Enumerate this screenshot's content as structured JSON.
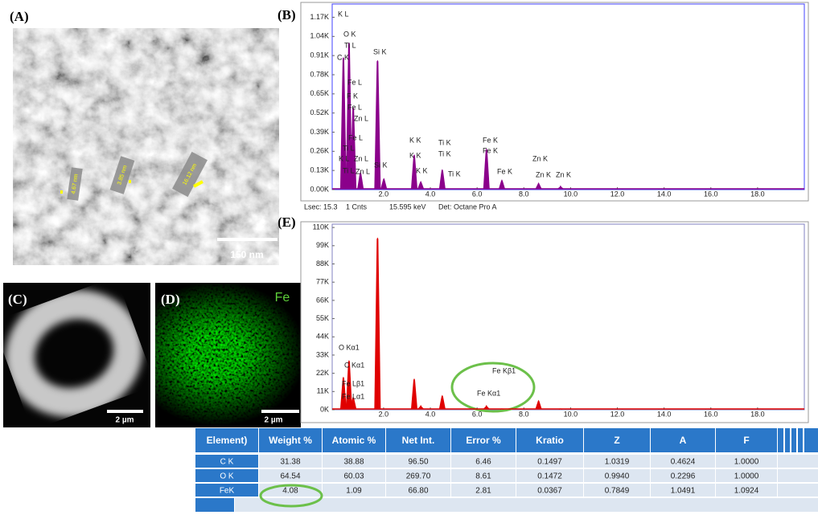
{
  "panel_labels": {
    "a": "(A)",
    "b": "(B)",
    "c": "(C)",
    "d": "(D)",
    "e": "(E)"
  },
  "sem_image": {
    "measurements": [
      "4.67 nm",
      "3.85 nm",
      "16.12 nm"
    ],
    "scale_bar": "150 nm"
  },
  "map_c": {
    "scale_bar": "2 µm"
  },
  "map_d": {
    "element": "Fe",
    "scale_bar": "2 µm"
  },
  "chart_data": [
    {
      "type": "spectrum",
      "color": "#8b008b",
      "x": [
        0.28,
        0.52,
        0.7,
        1.01,
        1.74,
        2.01,
        3.31,
        3.59,
        4.51,
        6.4,
        7.06,
        8.63,
        9.57
      ],
      "values": [
        0.9,
        1.0,
        0.56,
        0.12,
        0.88,
        0.08,
        0.24,
        0.06,
        0.14,
        0.28,
        0.07,
        0.05,
        0.03
      ],
      "xlim": [
        -0.2,
        20
      ],
      "ylim": [
        0,
        1.26
      ],
      "xticks": [
        {
          "value": 2,
          "label": "2.0"
        },
        {
          "value": 4,
          "label": "4.0"
        },
        {
          "value": 6,
          "label": "6.0"
        },
        {
          "value": 8,
          "label": "8.0"
        },
        {
          "value": 10,
          "label": "10.0"
        },
        {
          "value": 12,
          "label": "12.0"
        },
        {
          "value": 14,
          "label": "14.0"
        },
        {
          "value": 16,
          "label": "16.0"
        },
        {
          "value": 18,
          "label": "18.0"
        }
      ],
      "yticks": [
        {
          "value": 0,
          "label": "0.00K"
        },
        {
          "value": 0.13,
          "label": "0.13K"
        },
        {
          "value": 0.26,
          "label": "0.26K"
        },
        {
          "value": 0.39,
          "label": "0.39K"
        },
        {
          "value": 0.52,
          "label": "0.52K"
        },
        {
          "value": 0.65,
          "label": "0.65K"
        },
        {
          "value": 0.78,
          "label": "0.78K"
        },
        {
          "value": 0.91,
          "label": "0.91K"
        },
        {
          "value": 1.04,
          "label": "1.04K"
        },
        {
          "value": 1.17,
          "label": "1.17K"
        }
      ],
      "peak_labels": [
        "K L",
        "O K",
        "Ti L",
        "C K",
        "Si K",
        "Fe L",
        "F  K",
        "Fe L",
        "Zn L",
        "Fe L",
        "Ti L",
        "K L",
        "Zn L",
        "Ti L",
        "Zn L",
        "Si K",
        "K  K",
        "K  K",
        "K  K",
        "Ti K",
        "Ti K",
        "Ti K",
        "Fe K",
        "Fe K",
        "Fe K",
        "Zn K",
        "Zn K",
        "Zn K"
      ],
      "footer": [
        "Lsec: 15.3",
        "1 Cnts",
        "15.595 keV",
        "Det: Octane Pro A"
      ]
    },
    {
      "type": "spectrum",
      "color": "#e00000",
      "x": [
        0.28,
        0.52,
        0.7,
        1.74,
        3.31,
        3.59,
        4.51,
        6.4,
        7.06,
        8.63,
        9.57
      ],
      "values": [
        20,
        30,
        8,
        104,
        19,
        3,
        9,
        3,
        1,
        6,
        1
      ],
      "xlim": [
        -0.2,
        20
      ],
      "ylim": [
        0,
        112
      ],
      "xticks": [
        {
          "value": 2,
          "label": "2.0"
        },
        {
          "value": 4,
          "label": "4.0"
        },
        {
          "value": 6,
          "label": "6.0"
        },
        {
          "value": 8,
          "label": "8.0"
        },
        {
          "value": 10,
          "label": "10.0"
        },
        {
          "value": 12,
          "label": "12.0"
        },
        {
          "value": 14,
          "label": "14.0"
        },
        {
          "value": 16,
          "label": "16.0"
        },
        {
          "value": 18,
          "label": "18.0"
        }
      ],
      "yticks": [
        {
          "value": 0,
          "label": "0K"
        },
        {
          "value": 11,
          "label": "11K"
        },
        {
          "value": 22,
          "label": "22K"
        },
        {
          "value": 33,
          "label": "33K"
        },
        {
          "value": 44,
          "label": "44K"
        },
        {
          "value": 55,
          "label": "55K"
        },
        {
          "value": 66,
          "label": "66K"
        },
        {
          "value": 77,
          "label": "77K"
        },
        {
          "value": 88,
          "label": "88K"
        },
        {
          "value": 99,
          "label": "99K"
        },
        {
          "value": 110,
          "label": "110K"
        }
      ],
      "peak_labels": [
        "O Kα1",
        "C Kα1",
        "Fe Lβ1",
        "Fe Lα1",
        "Fe Kβ1",
        "Fe Kα1"
      ]
    }
  ],
  "table": {
    "header": [
      "Element)",
      "Weight %",
      "Atomic %",
      "Net Int.",
      "Error %",
      "Kratio",
      "Z",
      "A",
      "F"
    ],
    "rows": [
      [
        "C K",
        "31.38",
        "38.88",
        "96.50",
        "6.46",
        "0.1497",
        "1.0319",
        "0.4624",
        "1.0000"
      ],
      [
        "O K",
        "64.54",
        "60.03",
        "269.70",
        "8.61",
        "0.1472",
        "0.9940",
        "0.2296",
        "1.0000"
      ],
      [
        "FeK",
        "4.08",
        "1.09",
        "66.80",
        "2.81",
        "0.0367",
        "0.7849",
        "1.0491",
        "1.0924"
      ]
    ]
  }
}
